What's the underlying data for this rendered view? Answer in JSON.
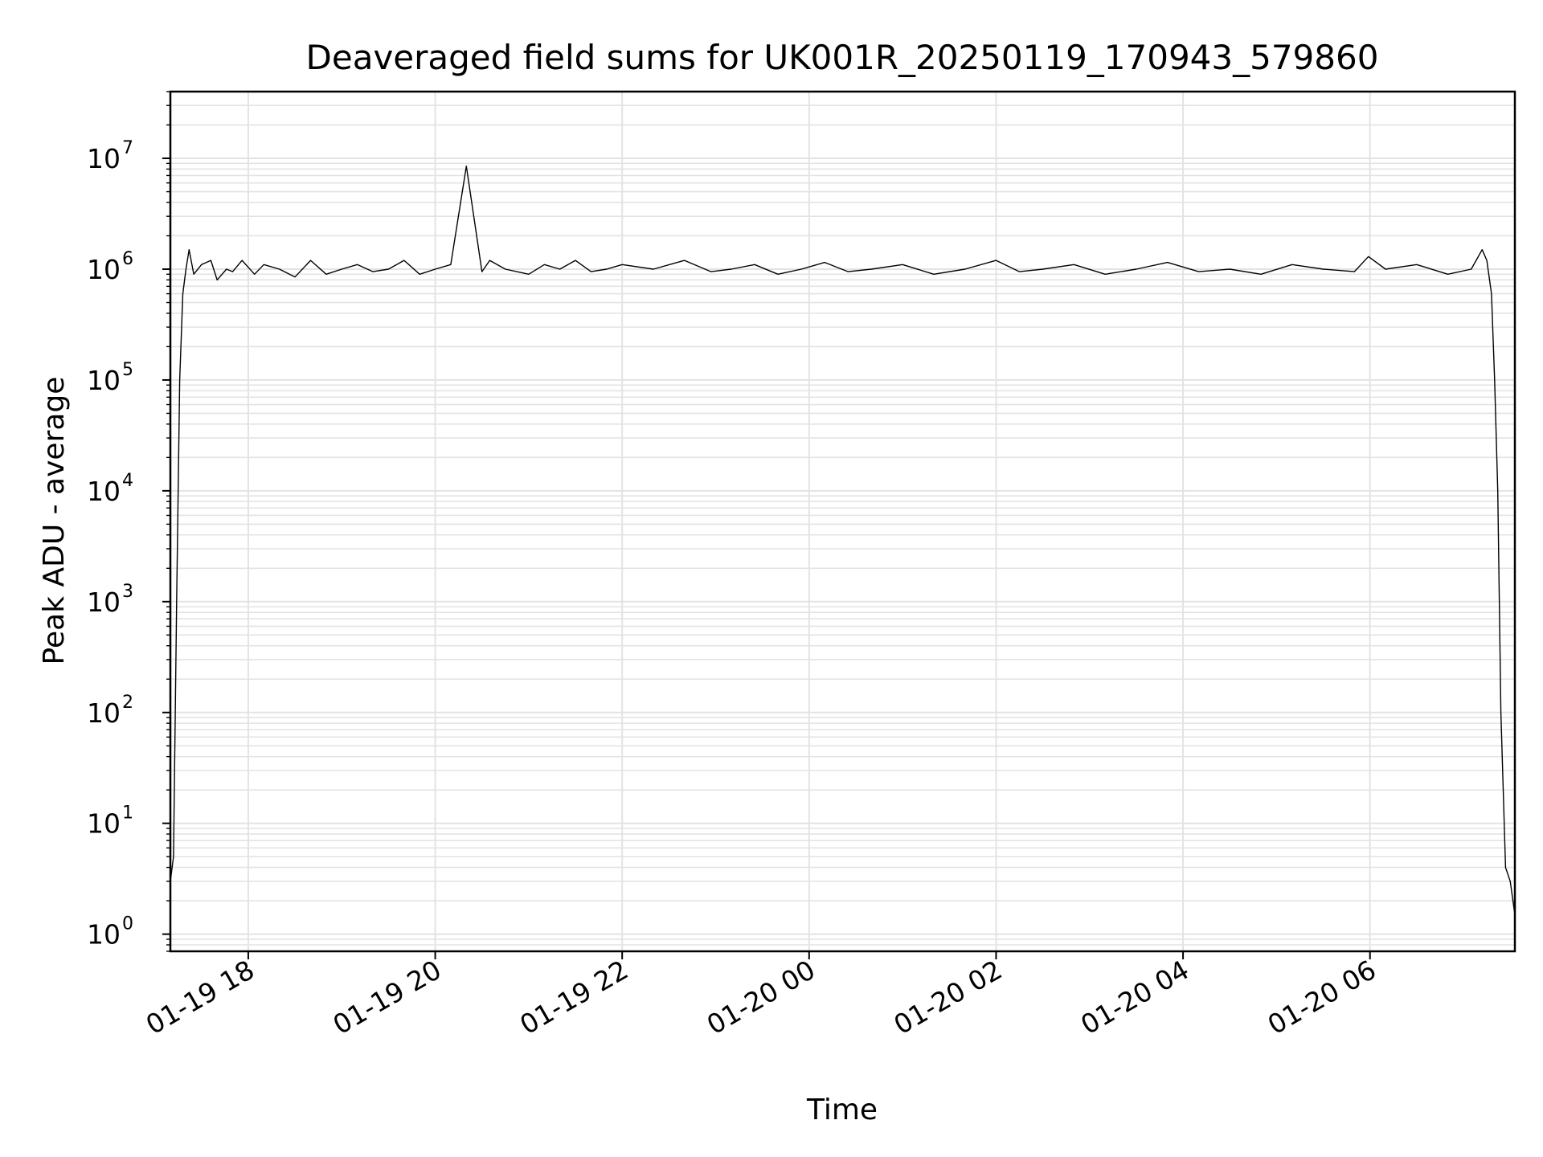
{
  "chart_data": {
    "type": "line",
    "title": "Deaveraged field sums for UK001R_20250119_170943_579860",
    "xlabel": "Time",
    "ylabel": "Peak ADU - average",
    "yscale": "log",
    "ylim": [
      0.7,
      40000000
    ],
    "xlim": [
      "2025-01-19 17:10",
      "2025-01-20 07:33"
    ],
    "grid": true,
    "grid_which": "both",
    "line_color": "#000000",
    "x_tick_labels": [
      "01-19 18",
      "01-19 20",
      "01-19 22",
      "01-20 00",
      "01-20 02",
      "01-20 04",
      "01-20 06"
    ],
    "x_ticks": [
      "2025-01-19 18:00",
      "2025-01-19 20:00",
      "2025-01-19 22:00",
      "2025-01-20 00:00",
      "2025-01-20 02:00",
      "2025-01-20 04:00",
      "2025-01-20 06:00"
    ],
    "y_ticks": [
      {
        "base": "10",
        "exp": "0",
        "value": 1
      },
      {
        "base": "10",
        "exp": "1",
        "value": 10
      },
      {
        "base": "10",
        "exp": "2",
        "value": 100
      },
      {
        "base": "10",
        "exp": "3",
        "value": 1000
      },
      {
        "base": "10",
        "exp": "4",
        "value": 10000
      },
      {
        "base": "10",
        "exp": "5",
        "value": 100000
      },
      {
        "base": "10",
        "exp": "6",
        "value": 1000000
      },
      {
        "base": "10",
        "exp": "7",
        "value": 10000000
      }
    ],
    "series": [
      {
        "x": [
          "2025-01-19 17:10",
          "2025-01-19 17:12",
          "2025-01-19 17:14",
          "2025-01-19 17:16",
          "2025-01-19 17:18",
          "2025-01-19 17:20",
          "2025-01-19 17:22",
          "2025-01-19 17:25",
          "2025-01-19 17:30",
          "2025-01-19 17:36",
          "2025-01-19 17:40",
          "2025-01-19 17:46",
          "2025-01-19 17:50",
          "2025-01-19 17:56",
          "2025-01-19 18:04",
          "2025-01-19 18:10",
          "2025-01-19 18:20",
          "2025-01-19 18:30",
          "2025-01-19 18:40",
          "2025-01-19 18:50",
          "2025-01-19 19:00",
          "2025-01-19 19:10",
          "2025-01-19 19:20",
          "2025-01-19 19:30",
          "2025-01-19 19:40",
          "2025-01-19 19:50",
          "2025-01-19 20:00",
          "2025-01-19 20:10",
          "2025-01-19 20:20",
          "2025-01-19 20:30",
          "2025-01-19 20:35",
          "2025-01-19 20:45",
          "2025-01-19 21:00",
          "2025-01-19 21:10",
          "2025-01-19 21:20",
          "2025-01-19 21:30",
          "2025-01-19 21:40",
          "2025-01-19 21:50",
          "2025-01-19 22:00",
          "2025-01-19 22:20",
          "2025-01-19 22:40",
          "2025-01-19 22:57",
          "2025-01-19 23:10",
          "2025-01-19 23:25",
          "2025-01-19 23:40",
          "2025-01-19 23:55",
          "2025-01-20 00:10",
          "2025-01-20 00:25",
          "2025-01-20 00:40",
          "2025-01-20 01:00",
          "2025-01-20 01:20",
          "2025-01-20 01:40",
          "2025-01-20 02:00",
          "2025-01-20 02:15",
          "2025-01-20 02:30",
          "2025-01-20 02:50",
          "2025-01-20 03:10",
          "2025-01-20 03:30",
          "2025-01-20 03:50",
          "2025-01-20 04:10",
          "2025-01-20 04:30",
          "2025-01-20 04:50",
          "2025-01-20 05:10",
          "2025-01-20 05:30",
          "2025-01-20 05:50",
          "2025-01-20 05:59",
          "2025-01-20 06:10",
          "2025-01-20 06:30",
          "2025-01-20 06:50",
          "2025-01-20 07:05",
          "2025-01-20 07:12",
          "2025-01-20 07:15",
          "2025-01-20 07:18",
          "2025-01-20 07:20",
          "2025-01-20 07:22",
          "2025-01-20 07:24",
          "2025-01-20 07:27",
          "2025-01-20 07:30",
          "2025-01-20 07:33"
        ],
        "y": [
          3,
          5,
          1000,
          100000,
          600000,
          1000000,
          1500000,
          900000,
          1100000,
          1200000,
          800000,
          1000000,
          950000,
          1200000,
          900000,
          1100000,
          1000000,
          850000,
          1200000,
          900000,
          1000000,
          1100000,
          950000,
          1000000,
          1200000,
          900000,
          1000000,
          1100000,
          8500000,
          950000,
          1200000,
          1000000,
          900000,
          1100000,
          1000000,
          1200000,
          950000,
          1000000,
          1100000,
          1000000,
          1200000,
          950000,
          1000000,
          1100000,
          900000,
          1000000,
          1150000,
          950000,
          1000000,
          1100000,
          900000,
          1000000,
          1200000,
          950000,
          1000000,
          1100000,
          900000,
          1000000,
          1150000,
          950000,
          1000000,
          900000,
          1100000,
          1000000,
          950000,
          1300000,
          1000000,
          1100000,
          900000,
          1000000,
          1500000,
          1200000,
          600000,
          100000,
          10000,
          100,
          4,
          3,
          1.5
        ]
      }
    ]
  }
}
